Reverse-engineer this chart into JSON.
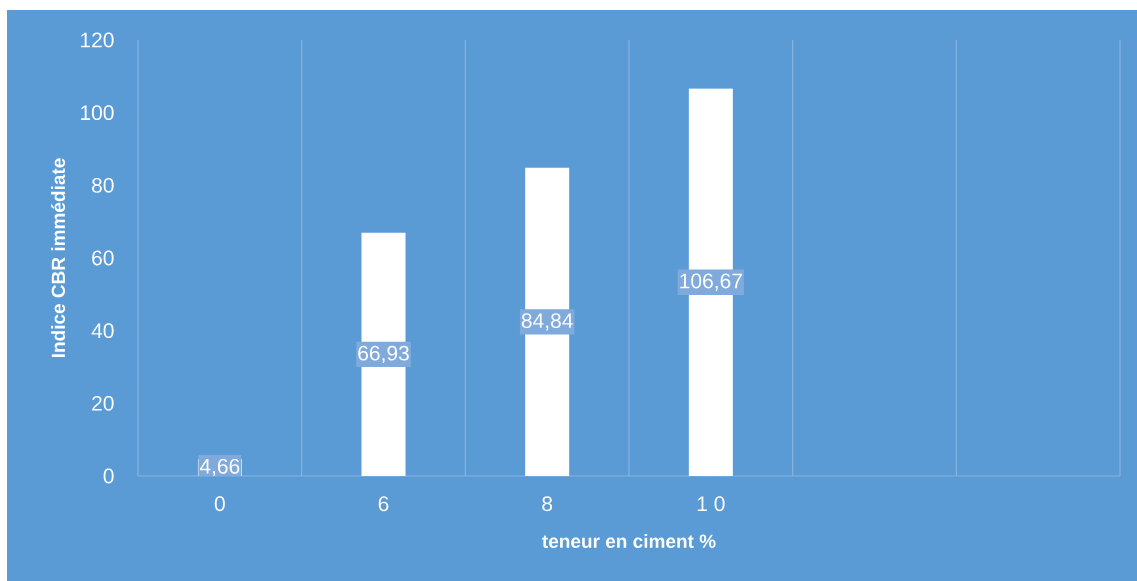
{
  "chart_data": {
    "type": "bar",
    "xlabel": "teneur en ciment %",
    "ylabel": "Indice CBR immédiate",
    "categories": [
      "0",
      "6",
      "8",
      "1 0",
      null,
      null
    ],
    "values": [
      4.66,
      66.93,
      84.84,
      106.67,
      null,
      null
    ],
    "value_labels": [
      "4,66",
      "66,93",
      "84,84",
      "106,67",
      null,
      null
    ],
    "color": "#ffffff",
    "ylim": [
      0,
      120
    ],
    "yticks": [
      0,
      20,
      40,
      60,
      80,
      100,
      120
    ],
    "grid": "x"
  }
}
